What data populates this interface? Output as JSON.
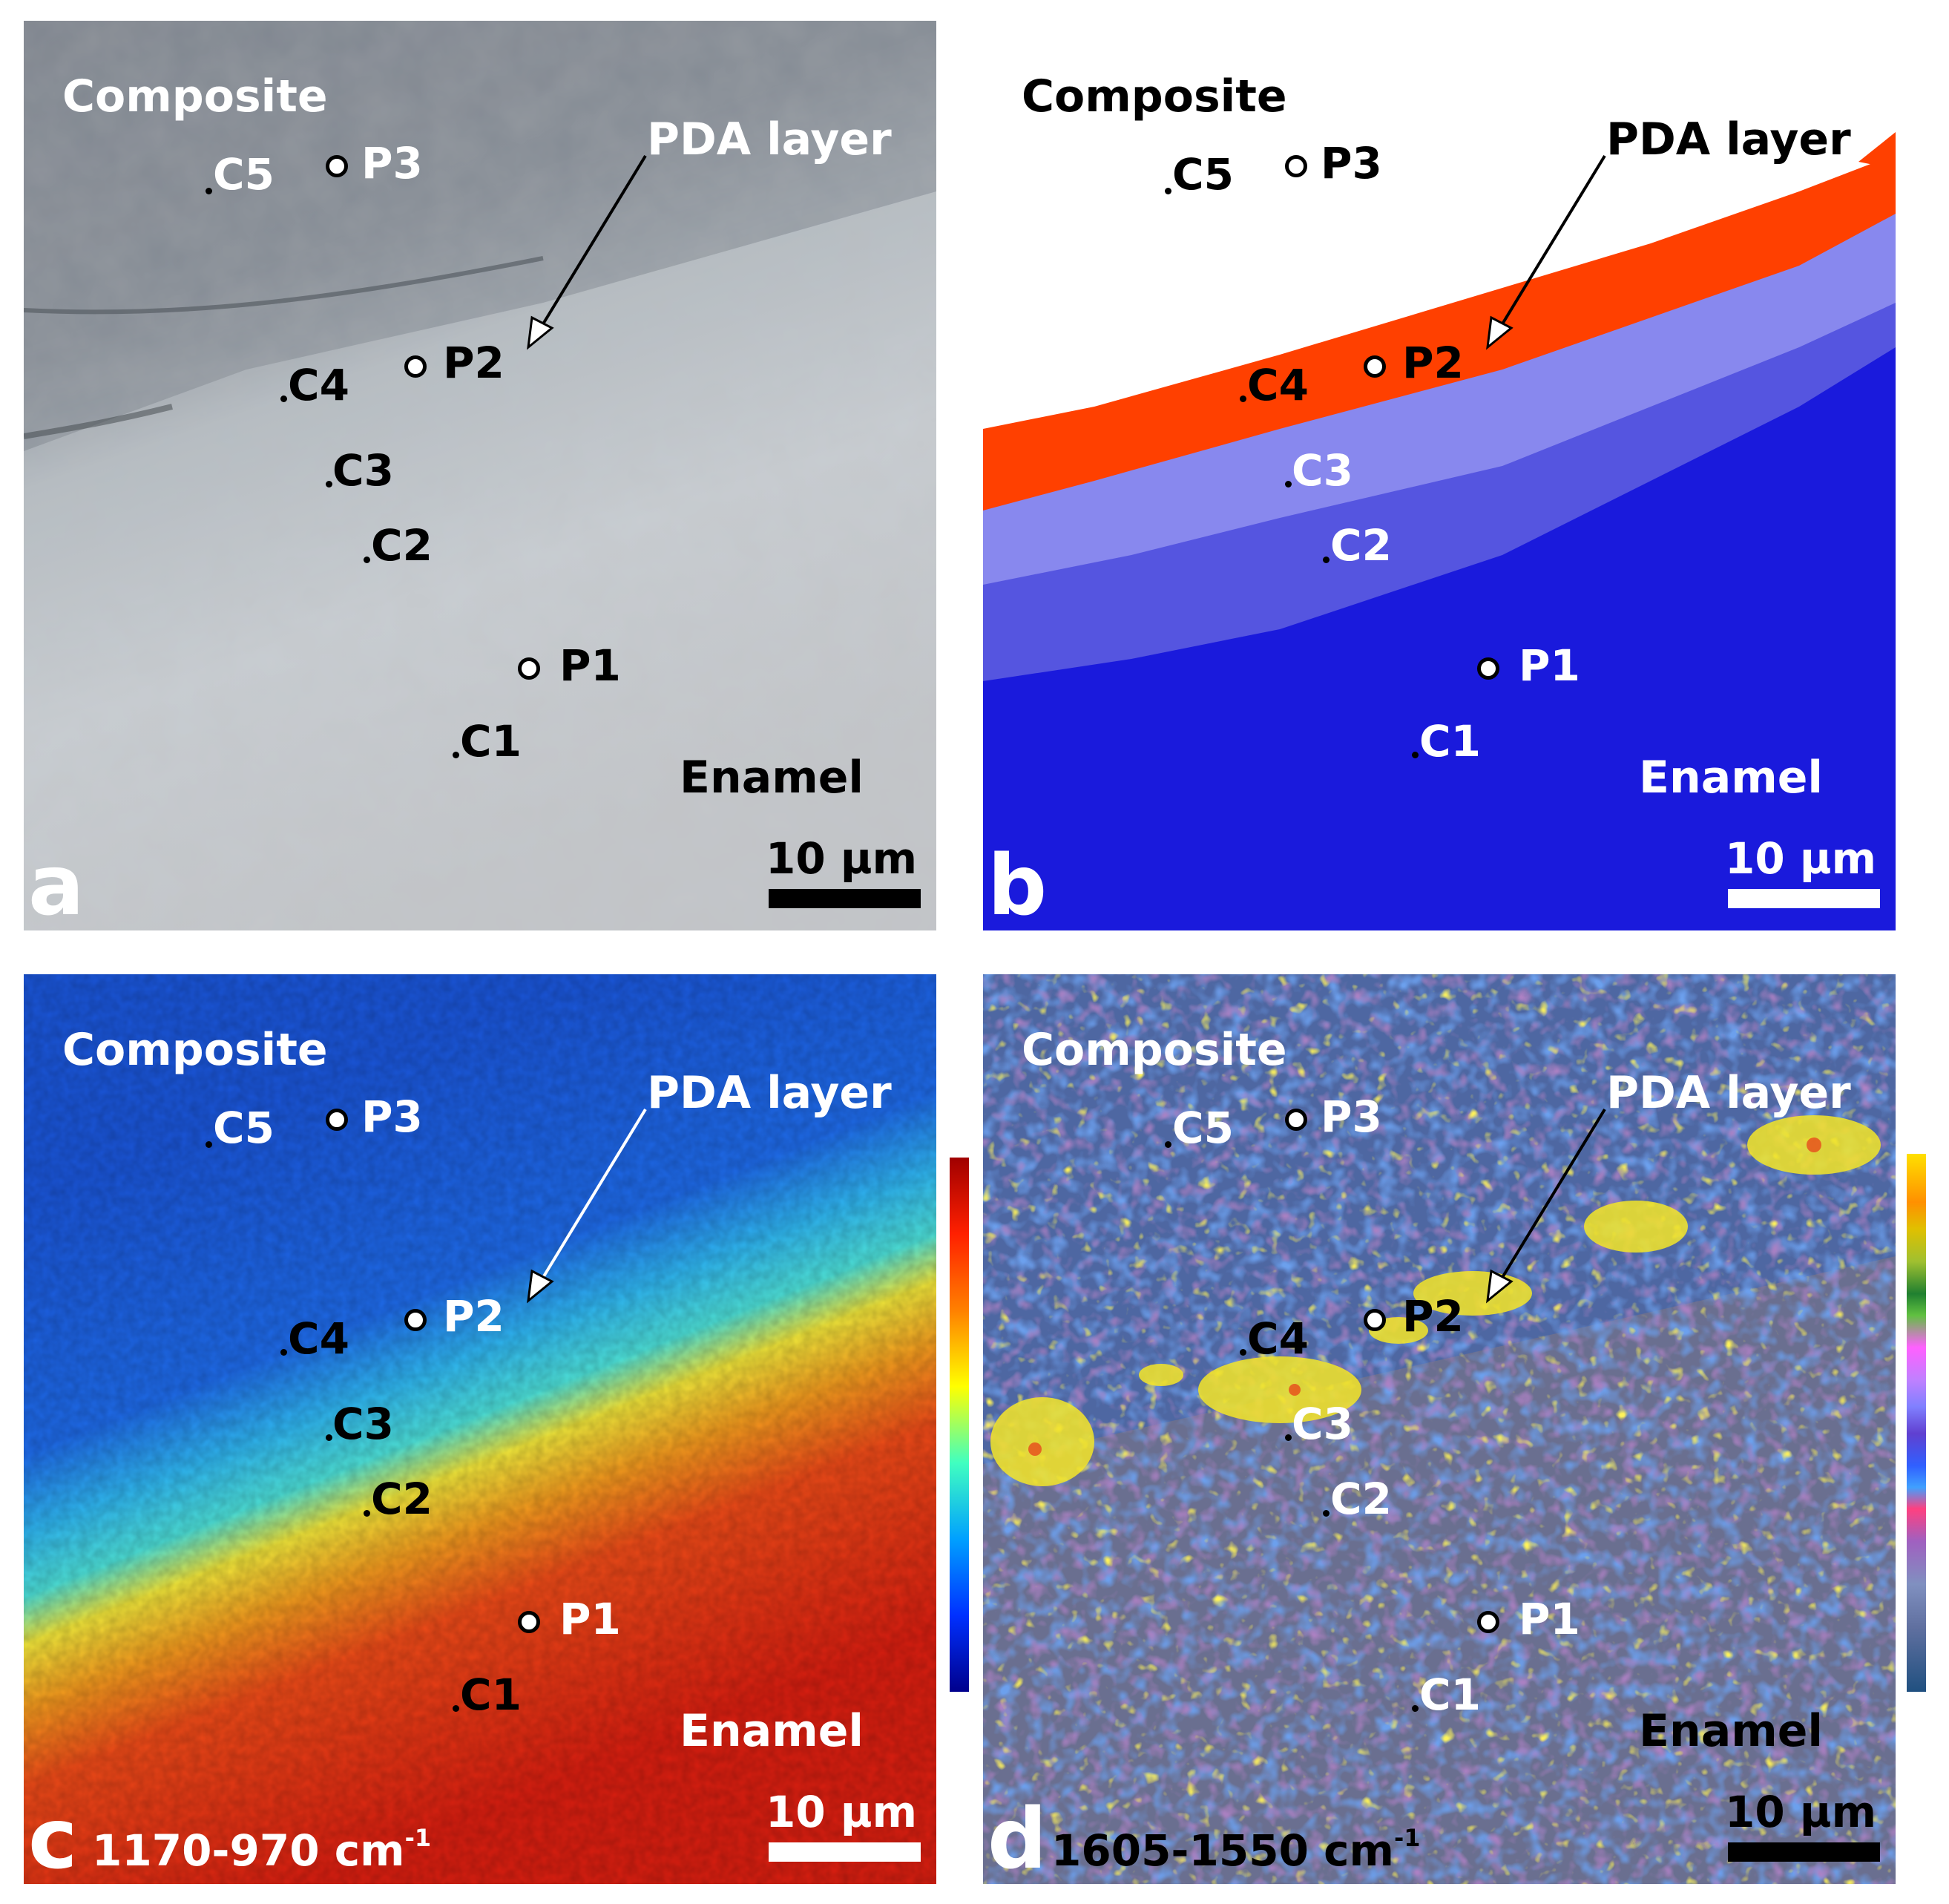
{
  "labels": {
    "composite": "Composite",
    "pda_layer": "PDA layer",
    "enamel": "Enamel",
    "scale": "10 µm"
  },
  "points": {
    "p1": "P1",
    "p2": "P2",
    "p3": "P3",
    "c1": "C1",
    "c2": "C2",
    "c3": "C3",
    "c4": "C4",
    "c5": "C5"
  },
  "panels": {
    "a": {
      "letter": "a"
    },
    "b": {
      "letter": "b"
    },
    "c": {
      "letter": "c",
      "band": "1170-970 cm",
      "band_exp": "-1"
    },
    "d": {
      "letter": "d",
      "band": "1605-1550 cm",
      "band_exp": "-1"
    }
  },
  "colors": {
    "cluster_orange": "#ff4000",
    "cluster_light_blue": "#8888ee",
    "cluster_mid_blue": "#5555e0",
    "cluster_deep_blue": "#1a1adc"
  }
}
